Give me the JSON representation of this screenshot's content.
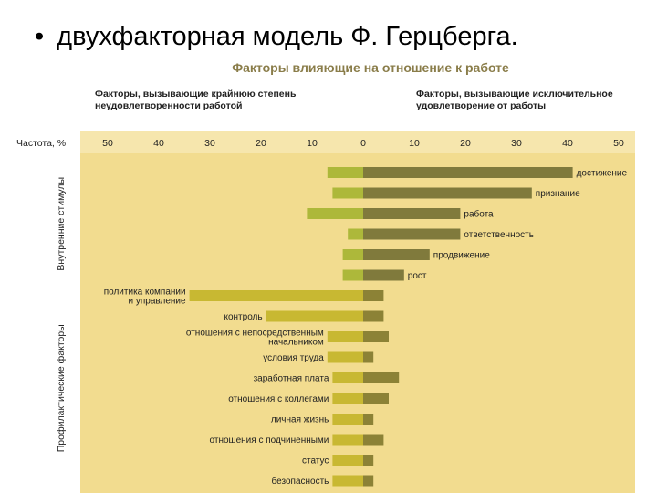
{
  "slide": {
    "bullet": "•",
    "title": "двухфакторная модель Ф. Герцберга."
  },
  "colors": {
    "panel": "#f2dc8f",
    "panel_header": "#f6e6ad",
    "dissatisfaction": "#c8b832",
    "satisfaction": "#807a3c",
    "motivator_left": "#adb83a",
    "hygiene_right": "#8c8236",
    "text": "#222222",
    "subtitle_text": "#8a7d4a"
  },
  "chart_data": {
    "type": "bar",
    "title": "Факторы влияющие на отношение к работе",
    "left_header": [
      "Факторы, вызывающие крайнюю степень",
      "неудовлетворенности работой"
    ],
    "right_header": [
      "Факторы, вызывающие исключительное",
      "удовлетворение от работы"
    ],
    "axis_label": "Частота, %",
    "left_ticks": [
      "50",
      "40",
      "30",
      "20",
      "10",
      "0"
    ],
    "right_ticks": [
      "10",
      "20",
      "30",
      "40",
      "50"
    ],
    "xlim": [
      -50,
      50
    ],
    "groups": [
      {
        "name": "Внутренние стимулы",
        "label_side": "right"
      },
      {
        "name": "Профилактические факторы",
        "label_side": "left"
      }
    ],
    "series": [
      {
        "name": "dissatisfaction",
        "side": "left"
      },
      {
        "name": "satisfaction",
        "side": "right"
      }
    ],
    "factors": [
      {
        "label": [
          "достижение"
        ],
        "group": 0,
        "dissatisfaction": 7,
        "satisfaction": 41
      },
      {
        "label": [
          "признание"
        ],
        "group": 0,
        "dissatisfaction": 6,
        "satisfaction": 33
      },
      {
        "label": [
          "работа"
        ],
        "group": 0,
        "dissatisfaction": 11,
        "satisfaction": 19
      },
      {
        "label": [
          "ответственность"
        ],
        "group": 0,
        "dissatisfaction": 3,
        "satisfaction": 19
      },
      {
        "label": [
          "продвижение"
        ],
        "group": 0,
        "dissatisfaction": 4,
        "satisfaction": 13
      },
      {
        "label": [
          "рост"
        ],
        "group": 0,
        "dissatisfaction": 4,
        "satisfaction": 8
      },
      {
        "label": [
          "политика компании",
          "и управление"
        ],
        "group": 1,
        "dissatisfaction": 34,
        "satisfaction": 4
      },
      {
        "label": [
          "контроль"
        ],
        "group": 1,
        "dissatisfaction": 19,
        "satisfaction": 4
      },
      {
        "label": [
          "отношения с непосредственным",
          "начальником"
        ],
        "group": 1,
        "dissatisfaction": 7,
        "satisfaction": 5
      },
      {
        "label": [
          "условия труда"
        ],
        "group": 1,
        "dissatisfaction": 7,
        "satisfaction": 2
      },
      {
        "label": [
          "заработная плата"
        ],
        "group": 1,
        "dissatisfaction": 6,
        "satisfaction": 7
      },
      {
        "label": [
          "отношения с коллегами"
        ],
        "group": 1,
        "dissatisfaction": 6,
        "satisfaction": 5
      },
      {
        "label": [
          "личная жизнь"
        ],
        "group": 1,
        "dissatisfaction": 6,
        "satisfaction": 2
      },
      {
        "label": [
          "отношения с подчиненными"
        ],
        "group": 1,
        "dissatisfaction": 6,
        "satisfaction": 4
      },
      {
        "label": [
          "статус"
        ],
        "group": 1,
        "dissatisfaction": 6,
        "satisfaction": 2
      },
      {
        "label": [
          "безопасность"
        ],
        "group": 1,
        "dissatisfaction": 6,
        "satisfaction": 2
      }
    ]
  }
}
